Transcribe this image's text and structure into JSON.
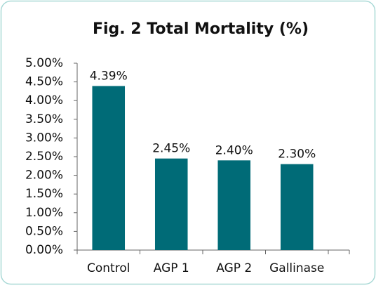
{
  "chart_data": {
    "type": "bar",
    "title": "Fig. 2 Total Mortality (%)",
    "categories": [
      "Control",
      "AGP 1",
      "AGP 2",
      "Gallinase"
    ],
    "values": [
      4.39,
      2.45,
      2.4,
      2.3
    ],
    "value_labels": [
      "4.39%",
      "2.45%",
      "2.40%",
      "2.30%"
    ],
    "color": "#006b77",
    "ylim": [
      0,
      5
    ],
    "yticks": [
      {
        "value": 0,
        "label": "0.00%"
      },
      {
        "value": 0.5,
        "label": "0.50%"
      },
      {
        "value": 1,
        "label": "1.00%"
      },
      {
        "value": 1.5,
        "label": "1.50%"
      },
      {
        "value": 2,
        "label": "2.00%"
      },
      {
        "value": 2.5,
        "label": "2.50%"
      },
      {
        "value": 3,
        "label": "3.00%"
      },
      {
        "value": 3.5,
        "label": "3.50%"
      },
      {
        "value": 4,
        "label": "4.00%"
      },
      {
        "value": 4.5,
        "label": "4.50%"
      },
      {
        "value": 5,
        "label": "5.00%"
      }
    ],
    "grid": false
  }
}
